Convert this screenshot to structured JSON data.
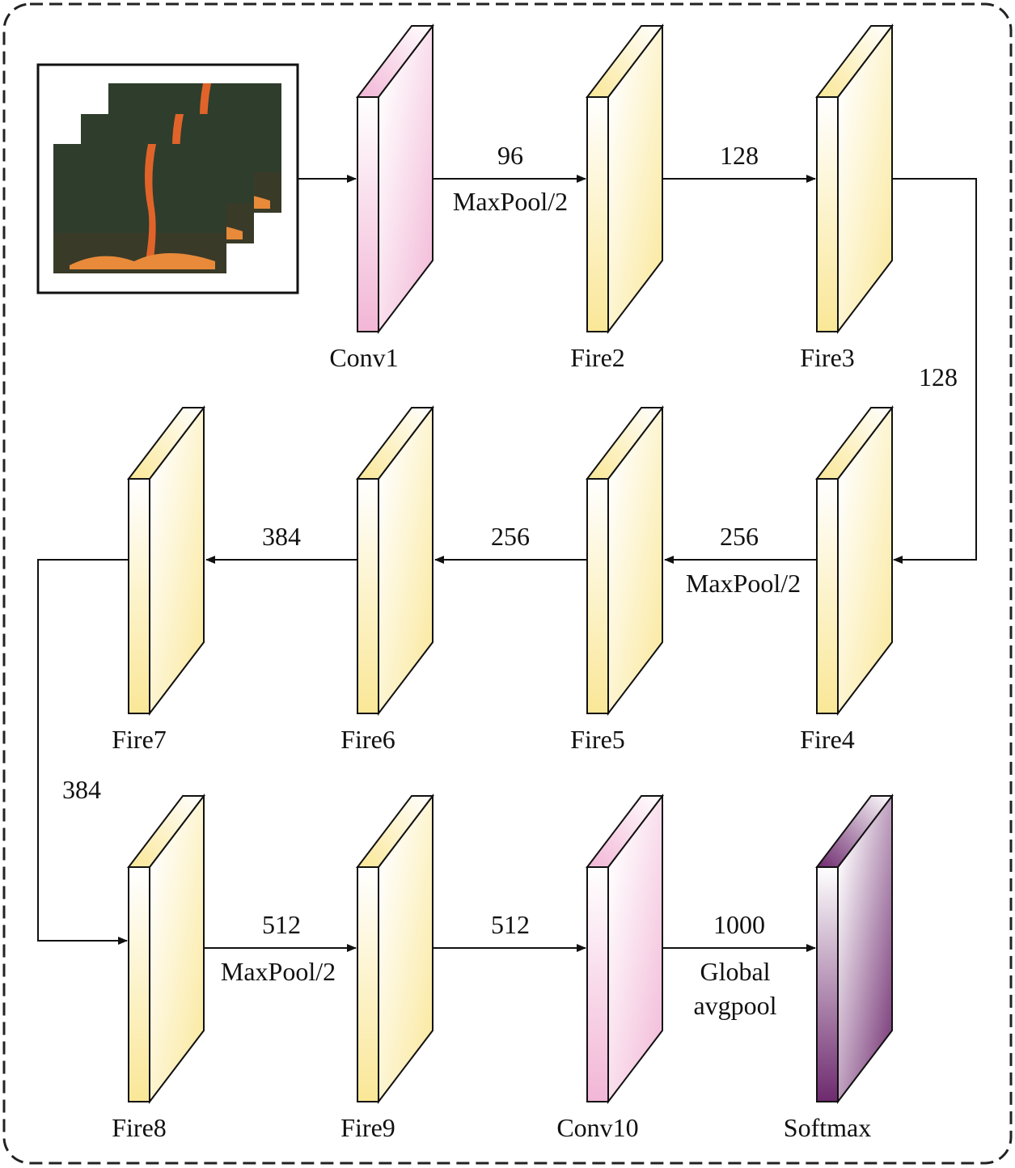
{
  "colors": {
    "conv": "#f2b6d6",
    "fire": "#fae797",
    "softmax": "#6e2a6e",
    "stroke": "#111111"
  },
  "input": {
    "icon": "fire-video-frames-image"
  },
  "layers": [
    {
      "id": "conv1",
      "label": "Conv1",
      "kind": "conv"
    },
    {
      "id": "fire2",
      "label": "Fire2",
      "kind": "fire"
    },
    {
      "id": "fire3",
      "label": "Fire3",
      "kind": "fire"
    },
    {
      "id": "fire4",
      "label": "Fire4",
      "kind": "fire"
    },
    {
      "id": "fire5",
      "label": "Fire5",
      "kind": "fire"
    },
    {
      "id": "fire6",
      "label": "Fire6",
      "kind": "fire"
    },
    {
      "id": "fire7",
      "label": "Fire7",
      "kind": "fire"
    },
    {
      "id": "fire8",
      "label": "Fire8",
      "kind": "fire"
    },
    {
      "id": "fire9",
      "label": "Fire9",
      "kind": "fire"
    },
    {
      "id": "conv10",
      "label": "Conv10",
      "kind": "conv"
    },
    {
      "id": "softmax",
      "label": "Softmax",
      "kind": "softmax"
    }
  ],
  "edges": {
    "conv1_fire2": {
      "channels": "96",
      "op": "MaxPool/2"
    },
    "fire2_fire3": {
      "channels": "128"
    },
    "fire3_fire4": {
      "channels": "128"
    },
    "fire4_fire5": {
      "channels": "256",
      "op": "MaxPool/2"
    },
    "fire5_fire6": {
      "channels": "256"
    },
    "fire6_fire7": {
      "channels": "384"
    },
    "fire7_fire8": {
      "channels": "384"
    },
    "fire8_fire9": {
      "channels": "512",
      "op": "MaxPool/2"
    },
    "fire9_conv10": {
      "channels": "512"
    },
    "conv10_softmax": {
      "channels": "1000",
      "op_line1": "Global",
      "op_line2": "avgpool"
    }
  }
}
